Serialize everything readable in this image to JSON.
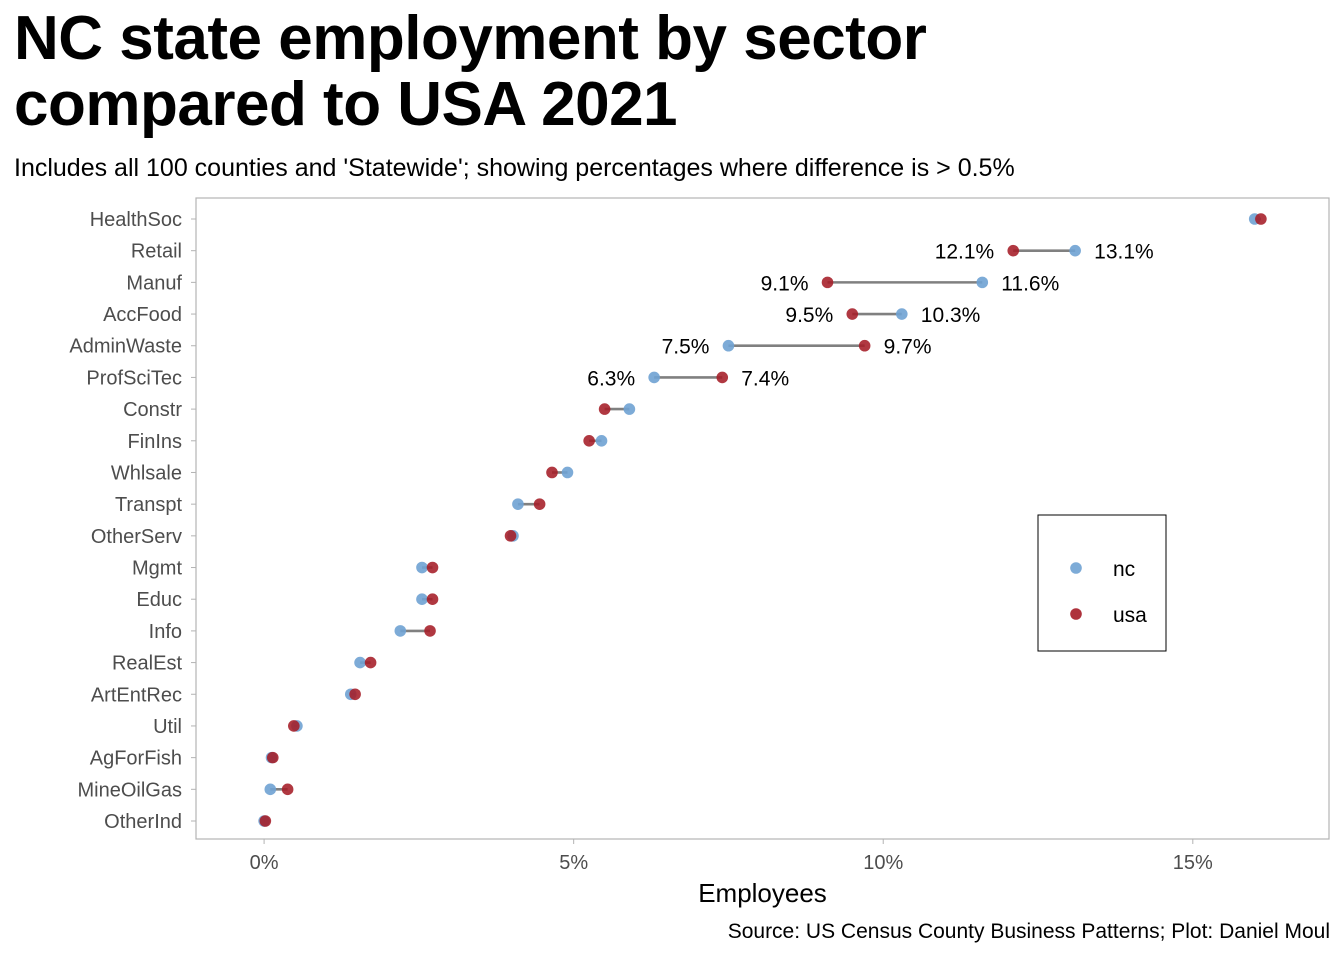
{
  "title": "NC state employment by sector compared to USA 2021",
  "subtitle": "Includes all 100 counties and 'Statewide'; showing percentages where difference is > 0.5%",
  "caption": "Source: US Census County Business Patterns; Plot: Daniel Moul",
  "colors": {
    "nc": "#6fa2d3",
    "usa": "#a51c27",
    "segment": "#808080",
    "panel_border": "#b3b3b3"
  },
  "chart_data": {
    "type": "dumbbell",
    "title": "NC state employment by sector compared to USA 2021",
    "subtitle": "Includes all 100 counties and 'Statewide'; showing percentages where difference is > 0.5%",
    "xlabel": "Employees",
    "ylabel": "",
    "xlim": [
      -1.1,
      17.2
    ],
    "x_ticks": [
      0,
      5,
      10,
      15
    ],
    "x_tick_labels": [
      "0%",
      "5%",
      "10%",
      "15%"
    ],
    "grid": false,
    "legend_position": "right",
    "legend": [
      {
        "key": "nc",
        "label": "nc"
      },
      {
        "key": "usa",
        "label": "usa"
      }
    ],
    "categories": [
      "HealthSoc",
      "Retail",
      "Manuf",
      "AccFood",
      "AdminWaste",
      "ProfSciTec",
      "Constr",
      "FinIns",
      "Whlsale",
      "Transpt",
      "OtherServ",
      "Mgmt",
      "Educ",
      "Info",
      "RealEst",
      "ArtEntRec",
      "Util",
      "AgForFish",
      "MineOilGas",
      "OtherInd"
    ],
    "series": [
      {
        "name": "nc",
        "values": [
          16.0,
          13.1,
          11.6,
          10.3,
          7.5,
          6.3,
          5.9,
          5.45,
          4.9,
          4.1,
          4.02,
          2.55,
          2.55,
          2.2,
          1.55,
          1.4,
          0.53,
          0.12,
          0.1,
          0.0
        ]
      },
      {
        "name": "usa",
        "values": [
          16.1,
          12.1,
          9.1,
          9.5,
          9.7,
          7.4,
          5.5,
          5.25,
          4.65,
          4.45,
          3.98,
          2.72,
          2.72,
          2.68,
          1.72,
          1.47,
          0.48,
          0.14,
          0.38,
          0.02
        ]
      }
    ],
    "annotations": [
      {
        "category": "Retail",
        "left": "12.1%",
        "right": "13.1%"
      },
      {
        "category": "Manuf",
        "left": "9.1%",
        "right": "11.6%"
      },
      {
        "category": "AccFood",
        "left": "9.5%",
        "right": "10.3%"
      },
      {
        "category": "AdminWaste",
        "left": "7.5%",
        "right": "9.7%"
      },
      {
        "category": "ProfSciTec",
        "left": "6.3%",
        "right": "7.4%"
      }
    ]
  }
}
